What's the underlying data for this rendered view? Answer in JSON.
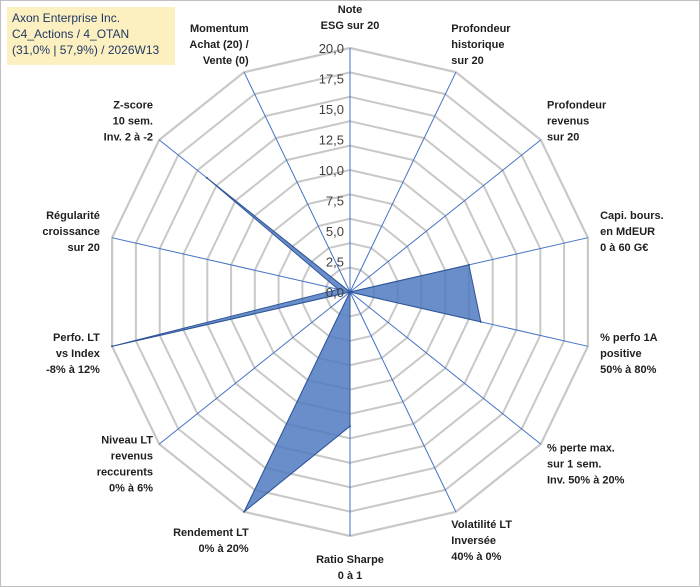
{
  "header": {
    "line1": "Axon Enterprise Inc.",
    "line2": "C4_Actions / 4_OTAN",
    "line3": "(31,0% | 57,9%) / 2026W13"
  },
  "colors": {
    "grid": "#c8c8c8",
    "spoke": "#4472c4",
    "fill": "#4f7ac0",
    "fill_opacity": "0.85"
  },
  "chart_data": {
    "type": "radar",
    "rmin": 0,
    "rmax": 20,
    "tick_labels": [
      "0,0",
      "2,5",
      "5,0",
      "7,5",
      "10,0",
      "12,5",
      "15,0",
      "17,5",
      "20,0"
    ],
    "tick_values": [
      0,
      2.5,
      5,
      7.5,
      10,
      12.5,
      15,
      17.5,
      20
    ],
    "grid_levels": 10,
    "axes": [
      {
        "lines": [
          "Note",
          "ESG sur 20"
        ],
        "value": 0
      },
      {
        "lines": [
          "Profondeur",
          "historique",
          "sur 20"
        ],
        "value": 0
      },
      {
        "lines": [
          "Profondeur",
          "revenus",
          "sur 20"
        ],
        "value": 0
      },
      {
        "lines": [
          "Capi. bours.",
          "en MdEUR",
          "0 à 60 G€"
        ],
        "value": 10
      },
      {
        "lines": [
          "% perfo 1A",
          "positive",
          "50% à 80%"
        ],
        "value": 11
      },
      {
        "lines": [
          "% perte max.",
          "sur 1 sem.",
          "Inv. 50% à 20%"
        ],
        "value": 0
      },
      {
        "lines": [
          "Volatilité LT",
          "Inversée",
          "40% à 0%"
        ],
        "value": 0
      },
      {
        "lines": [
          "Ratio Sharpe",
          "0 à 1"
        ],
        "value": 11
      },
      {
        "lines": [
          "Rendement LT",
          "0% à 20%"
        ],
        "value": 20
      },
      {
        "lines": [
          "Niveau LT",
          "revenus",
          "reccurents",
          "0% à 6%"
        ],
        "value": 0
      },
      {
        "lines": [
          "Perfo. LT",
          "vs Index",
          "-8% à 12%"
        ],
        "value": 20
      },
      {
        "lines": [
          "Régularité",
          "croissance",
          "sur 20"
        ],
        "value": 1
      },
      {
        "lines": [
          "Z-score",
          "10 sem.",
          "Inv. 2 à -2"
        ],
        "value": 15
      },
      {
        "lines": [
          "Momentum",
          "Achat (20) /",
          "Vente (0)"
        ],
        "value": 0
      }
    ]
  }
}
